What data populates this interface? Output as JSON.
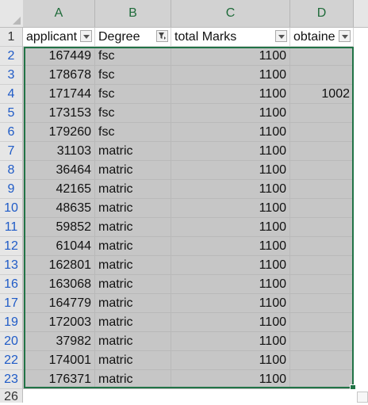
{
  "columns": [
    "A",
    "B",
    "C",
    "D"
  ],
  "header_row_number": "1",
  "headers": [
    "applicant",
    "Degree",
    "total Marks",
    "obtaine"
  ],
  "rows": [
    {
      "num": "2",
      "a": "167449",
      "b": "fsc",
      "c": "1100",
      "d": ""
    },
    {
      "num": "3",
      "a": "178678",
      "b": "fsc",
      "c": "1100",
      "d": ""
    },
    {
      "num": "4",
      "a": "171744",
      "b": "fsc",
      "c": "1100",
      "d": "1002"
    },
    {
      "num": "5",
      "a": "173153",
      "b": "fsc",
      "c": "1100",
      "d": ""
    },
    {
      "num": "6",
      "a": "179260",
      "b": "fsc",
      "c": "1100",
      "d": ""
    },
    {
      "num": "7",
      "a": "31103",
      "b": "matric",
      "c": "1100",
      "d": ""
    },
    {
      "num": "8",
      "a": "36464",
      "b": "matric",
      "c": "1100",
      "d": ""
    },
    {
      "num": "9",
      "a": "42165",
      "b": "matric",
      "c": "1100",
      "d": ""
    },
    {
      "num": "10",
      "a": "48635",
      "b": "matric",
      "c": "1100",
      "d": ""
    },
    {
      "num": "11",
      "a": "59852",
      "b": "matric",
      "c": "1100",
      "d": ""
    },
    {
      "num": "12",
      "a": "61044",
      "b": "matric",
      "c": "1100",
      "d": ""
    },
    {
      "num": "13",
      "a": "162801",
      "b": "matric",
      "c": "1100",
      "d": ""
    },
    {
      "num": "16",
      "a": "163068",
      "b": "matric",
      "c": "1100",
      "d": ""
    },
    {
      "num": "17",
      "a": "164779",
      "b": "matric",
      "c": "1100",
      "d": ""
    },
    {
      "num": "19",
      "a": "172003",
      "b": "matric",
      "c": "1100",
      "d": ""
    },
    {
      "num": "20",
      "a": "37982",
      "b": "matric",
      "c": "1100",
      "d": ""
    },
    {
      "num": "22",
      "a": "174001",
      "b": "matric",
      "c": "1100",
      "d": ""
    },
    {
      "num": "23",
      "a": "176371",
      "b": "matric",
      "c": "1100",
      "d": ""
    }
  ],
  "next_row_number": "26",
  "colors": {
    "selection_fill": "#c6c6c6",
    "selection_border": "#217346",
    "column_letter": "#1f6b3a",
    "row_number_filtered": "#1f5bc7"
  },
  "icons": {
    "filter_dropdown": "chevron-down-icon",
    "filter_active": "funnel-filter-icon"
  }
}
